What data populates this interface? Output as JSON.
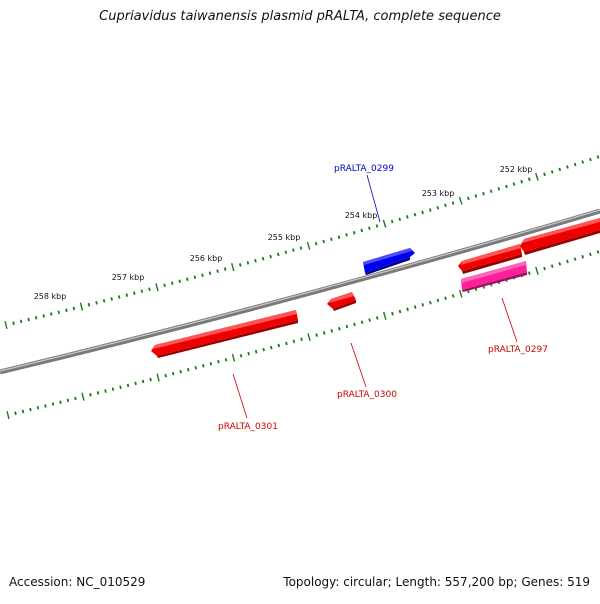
{
  "title": "Cupriavidus taiwanensis plasmid pRALTA, complete sequence",
  "footer": {
    "accession": "Accession: NC_010529",
    "summary": "Topology: circular; Length: 557,200 bp; Genes: 519"
  },
  "colors": {
    "backbone": "#7a7a7a",
    "ticks": "#1a7a1a",
    "gene_forward": "#ff0000",
    "gene_reverse": "#0000ff",
    "gene_other": "#ff2299",
    "label_forward": "#cc0000",
    "label_reverse": "#0000cc"
  },
  "ticks": [
    {
      "label": "252 kbp"
    },
    {
      "label": "253 kbp"
    },
    {
      "label": "254 kbp"
    },
    {
      "label": "255 kbp"
    },
    {
      "label": "256 kbp"
    },
    {
      "label": "257 kbp"
    },
    {
      "label": "258 kbp"
    }
  ],
  "genes": [
    {
      "name": "pRALTA_0299",
      "strand": "reverse",
      "label": "pRALTA_0299"
    },
    {
      "name": "pRALTA_0297",
      "strand": "forward",
      "label": "pRALTA_0297"
    },
    {
      "name": "pRALTA_0300",
      "strand": "forward",
      "label": "pRALTA_0300"
    },
    {
      "name": "pRALTA_0301",
      "strand": "forward",
      "label": "pRALTA_0301"
    }
  ]
}
